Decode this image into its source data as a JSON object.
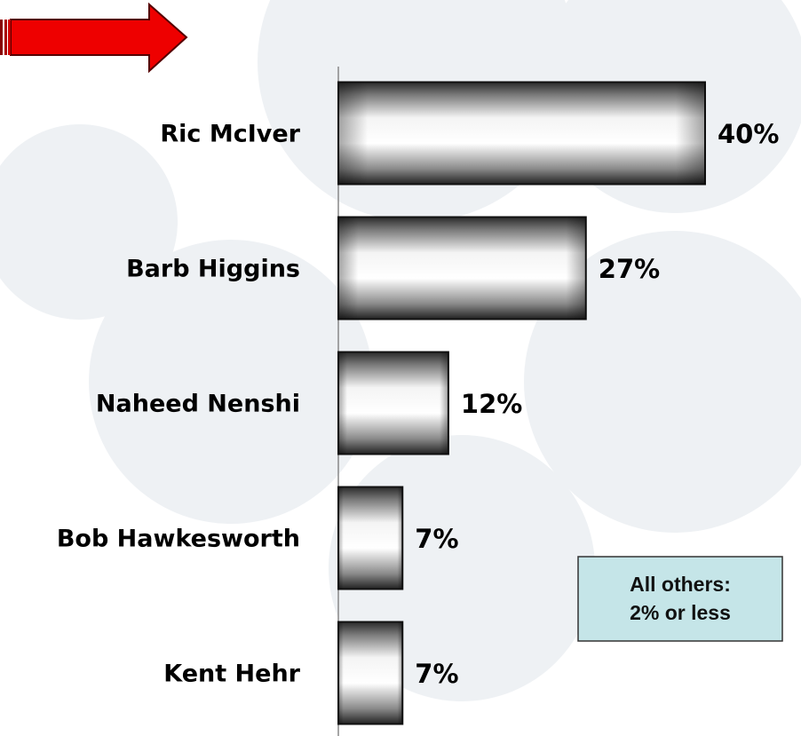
{
  "chart_data": {
    "type": "bar",
    "orientation": "horizontal",
    "categories": [
      "Ric McIver",
      "Barb Higgins",
      "Naheed Nenshi",
      "Bob Hawkesworth",
      "Kent Hehr"
    ],
    "values": [
      40,
      27,
      12,
      7,
      7
    ],
    "value_labels": [
      "40%",
      "27%",
      "12%",
      "7%",
      "7%"
    ],
    "xlim": [
      0,
      40
    ],
    "annotation": [
      "All others:",
      "2% or less"
    ]
  }
}
